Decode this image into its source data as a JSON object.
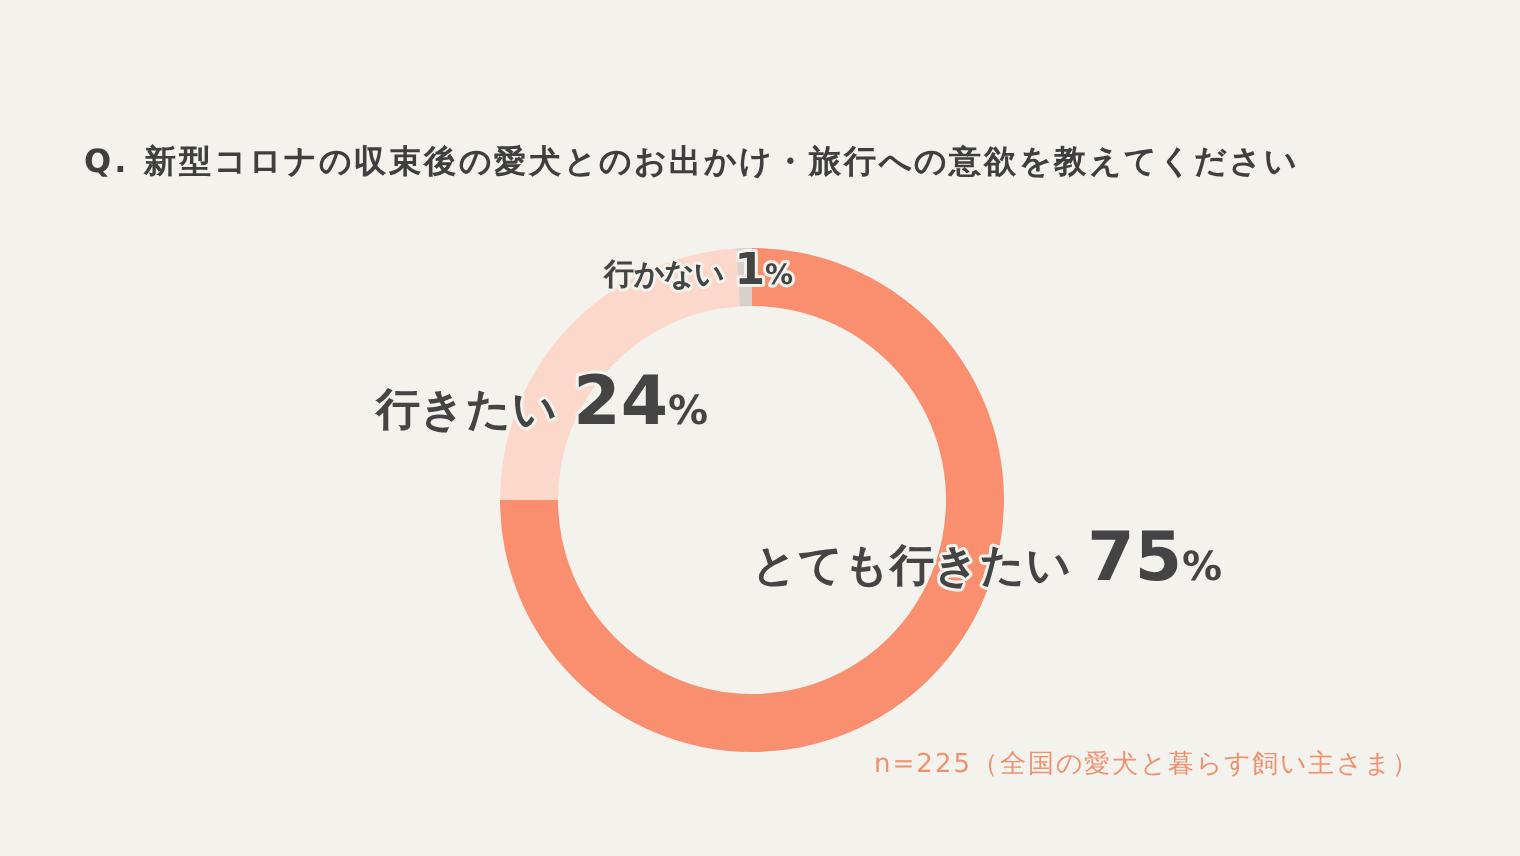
{
  "chart_data": {
    "type": "donut",
    "title": "Q. 新型コロナの収束後の愛犬とのお出かけ・旅行への意欲を教えてください",
    "categories": [
      "とても行きたい",
      "行きたい",
      "行かない"
    ],
    "values": [
      75,
      24,
      1
    ],
    "colors": [
      "#f98f6f",
      "#fcd8cb",
      "#d6d2cb"
    ],
    "value_labels": [
      "75%",
      "24%",
      "1%"
    ],
    "annotations": [
      "n=225（全国の愛犬と暮らす飼い主さま）"
    ]
  }
}
